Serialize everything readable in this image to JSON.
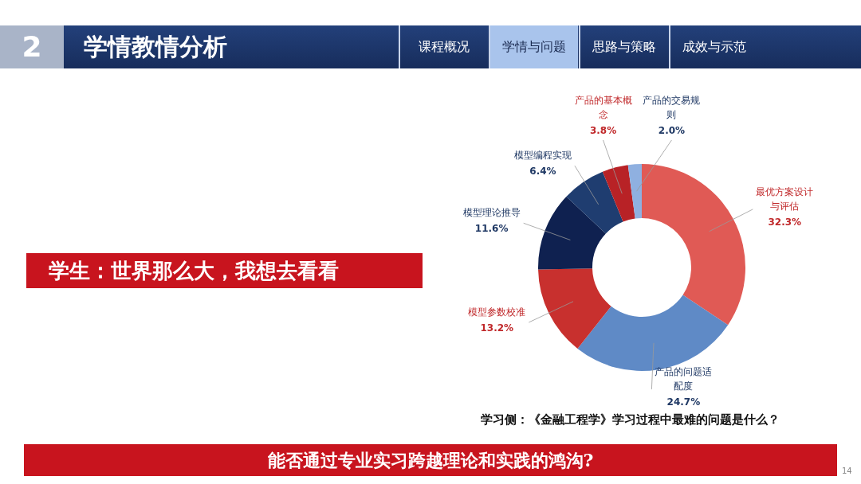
{
  "chart_data": {
    "type": "donut",
    "title": "学习侧：《金融工程学》学习过程中最难的问题是什么？",
    "categories": [
      "最优方案设计与评估",
      "产品的问题适配度",
      "模型参数校准",
      "模型理论推导",
      "模型编程实现",
      "产品的基本概念",
      "产品的交易规则"
    ],
    "values": [
      32.3,
      24.7,
      13.2,
      11.6,
      6.4,
      3.8,
      2.0
    ],
    "value_labels": [
      "32.3%",
      "24.7%",
      "13.2%",
      "11.6%",
      "6.4%",
      "3.8%",
      "2.0%"
    ],
    "colors": [
      "#e05a55",
      "#5f8ac6",
      "#c8302e",
      "#0f2150",
      "#1f3d70",
      "#b82226",
      "#8fb0e0"
    ],
    "annotations": [
      "2",
      "学情教情分析",
      "课程概况",
      "学情与问题",
      "思路与策略",
      "成效与示范",
      "学生：世界那么大，我想去看看",
      "能否通过专业实习跨越理论和实践的鸿沟?",
      "14"
    ]
  }
}
